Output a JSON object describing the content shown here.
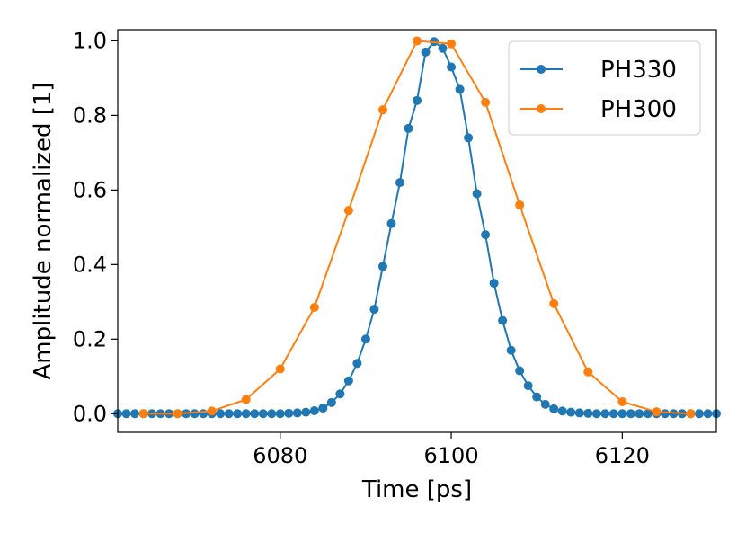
{
  "chart_data": {
    "type": "line",
    "title": "",
    "xlabel": "Time [ps]",
    "ylabel": "Amplitude normalized [1]",
    "xlim": [
      6061,
      6131
    ],
    "ylim": [
      -0.05,
      1.03
    ],
    "xticks": [
      6080,
      6100,
      6120
    ],
    "yticks": [
      0.0,
      0.2,
      0.4,
      0.6,
      0.8,
      1.0
    ],
    "xtick_labels": [
      "6080",
      "6100",
      "6120"
    ],
    "ytick_labels": [
      "0.0",
      "0.2",
      "0.4",
      "0.6",
      "0.8",
      "1.0"
    ],
    "grid": false,
    "legend_position": "top-right",
    "series": [
      {
        "name": "PH330",
        "color": "#1f77b4",
        "marker": "circle",
        "x": [
          6061,
          6062,
          6063,
          6064,
          6065,
          6066,
          6067,
          6068,
          6069,
          6070,
          6071,
          6072,
          6073,
          6074,
          6075,
          6076,
          6077,
          6078,
          6079,
          6080,
          6081,
          6082,
          6083,
          6084,
          6085,
          6086,
          6087,
          6088,
          6089,
          6090,
          6091,
          6092,
          6093,
          6094,
          6095,
          6096,
          6097,
          6098,
          6099,
          6100,
          6101,
          6102,
          6103,
          6104,
          6105,
          6106,
          6107,
          6108,
          6109,
          6110,
          6111,
          6112,
          6113,
          6114,
          6115,
          6116,
          6117,
          6118,
          6119,
          6120,
          6121,
          6122,
          6123,
          6124,
          6125,
          6126,
          6127,
          6128,
          6129,
          6130,
          6131
        ],
        "y": [
          0.0,
          0.0,
          0.0,
          0.0,
          0.0,
          0.0,
          0.0,
          0.0,
          0.0,
          0.0,
          0.0,
          0.0,
          0.0,
          0.0,
          0.0,
          0.0,
          0.0,
          0.0,
          0.0,
          0.0,
          0.001,
          0.002,
          0.004,
          0.008,
          0.015,
          0.03,
          0.053,
          0.088,
          0.135,
          0.2,
          0.28,
          0.395,
          0.51,
          0.62,
          0.765,
          0.84,
          0.97,
          0.998,
          0.98,
          0.93,
          0.87,
          0.74,
          0.59,
          0.48,
          0.35,
          0.25,
          0.17,
          0.115,
          0.075,
          0.045,
          0.025,
          0.013,
          0.007,
          0.004,
          0.002,
          0.001,
          0.0,
          0.0,
          0.0,
          0.0,
          0.0,
          0.0,
          0.0,
          0.0,
          0.0,
          0.0,
          0.0,
          0.0,
          0.0,
          0.0,
          0.0
        ]
      },
      {
        "name": "PH300",
        "color": "#ff7f0e",
        "marker": "circle",
        "x": [
          6064,
          6068,
          6072,
          6076,
          6080,
          6084,
          6088,
          6092,
          6096,
          6100,
          6104,
          6108,
          6112,
          6116,
          6120,
          6124,
          6128
        ],
        "y": [
          0.0,
          0.0,
          0.007,
          0.038,
          0.12,
          0.285,
          0.545,
          0.815,
          1.0,
          0.992,
          0.835,
          0.56,
          0.295,
          0.112,
          0.032,
          0.005,
          0.0
        ]
      }
    ]
  }
}
